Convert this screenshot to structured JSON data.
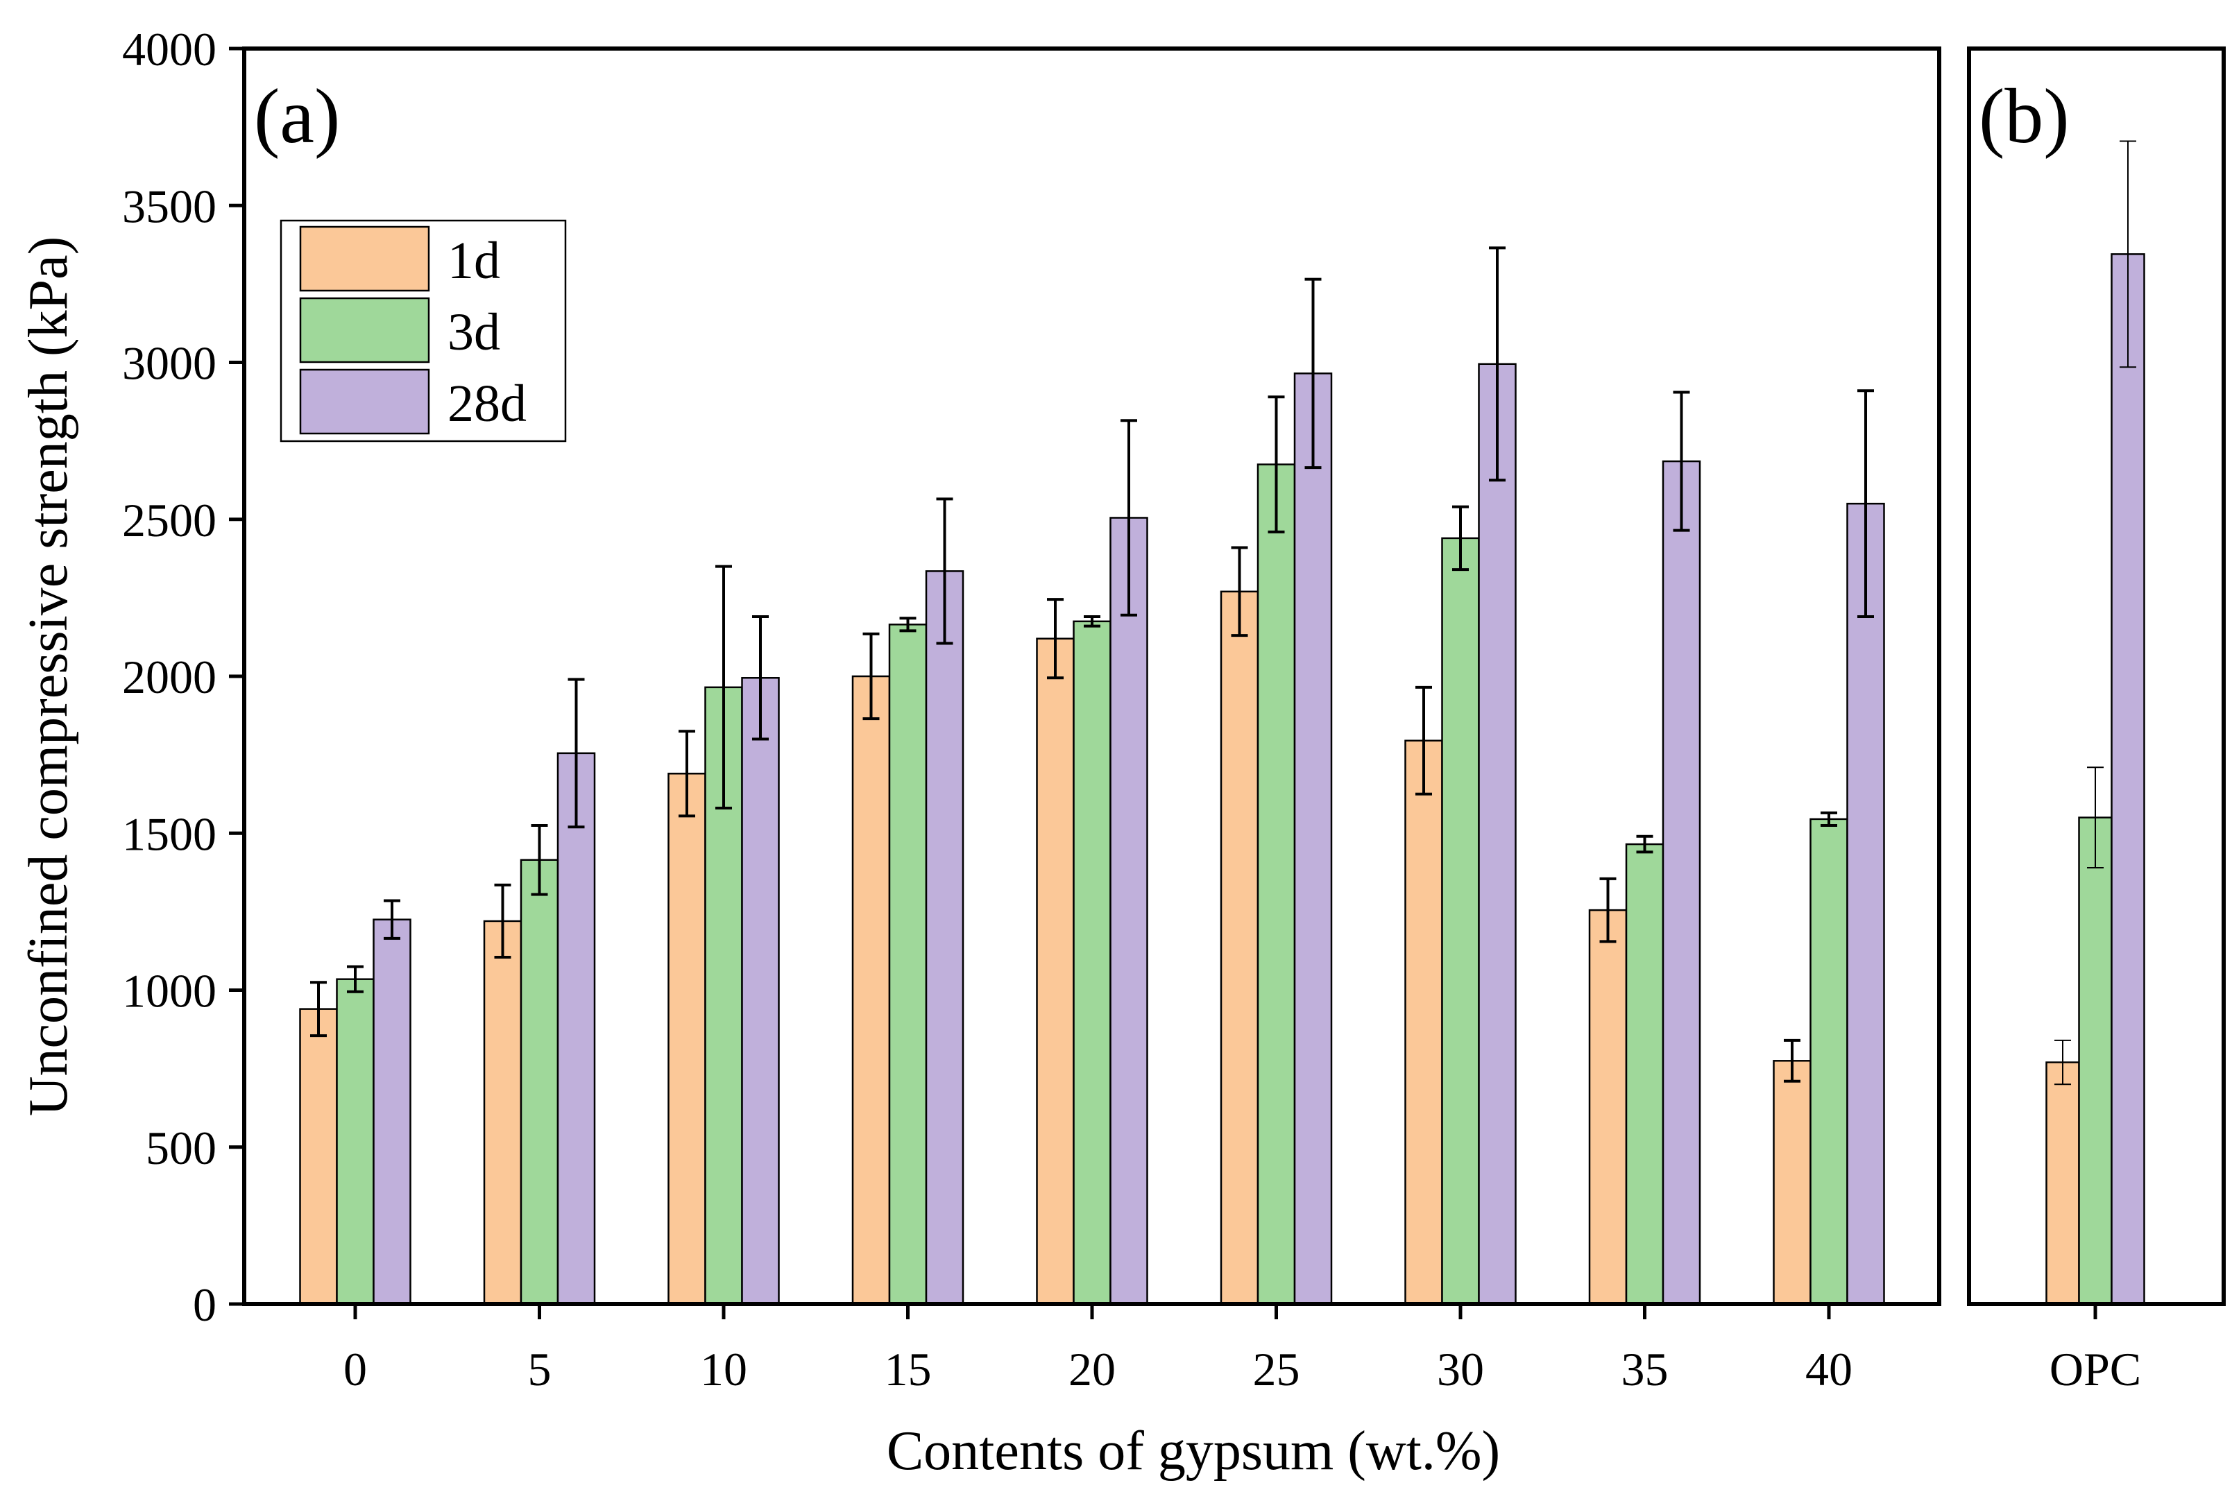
{
  "chart_data": {
    "type": "bar",
    "title": "",
    "ylabel": "Unconfined compressive strength (kPa)",
    "xlabel": "Contents of gypsum (wt.%)",
    "ylim": [
      0,
      4000
    ],
    "yticks": [
      "0",
      "500",
      "1000",
      "1500",
      "2000",
      "2500",
      "3000",
      "3500",
      "4000"
    ],
    "legend_position": "top-left",
    "series_styles": [
      {
        "name": "1d",
        "color": "#fbc898"
      },
      {
        "name": "3d",
        "color": "#9fd89a"
      },
      {
        "name": "28d",
        "color": "#c0b0db"
      }
    ],
    "panels": [
      {
        "label": "(a)",
        "categories": [
          "0",
          "5",
          "10",
          "15",
          "20",
          "25",
          "30",
          "35",
          "40"
        ],
        "series": [
          {
            "name": "1d",
            "values": [
              940,
              1220,
              1690,
              2000,
              2120,
              2270,
              1795,
              1255,
              775
            ],
            "errors": [
              85,
              115,
              135,
              135,
              125,
              140,
              170,
              100,
              65
            ]
          },
          {
            "name": "3d",
            "values": [
              1035,
              1415,
              1965,
              2165,
              2175,
              2675,
              2440,
              1465,
              1545
            ],
            "errors": [
              40,
              110,
              385,
              20,
              15,
              215,
              100,
              25,
              20
            ]
          },
          {
            "name": "28d",
            "values": [
              1225,
              1755,
              1995,
              2335,
              2505,
              2965,
              2995,
              2685,
              2550
            ],
            "errors": [
              60,
              235,
              195,
              230,
              310,
              300,
              370,
              220,
              360
            ]
          }
        ]
      },
      {
        "label": "(b)",
        "categories": [
          "OPC"
        ],
        "series": [
          {
            "name": "1d",
            "values": [
              770
            ],
            "errors": [
              70
            ]
          },
          {
            "name": "3d",
            "values": [
              1550
            ],
            "errors": [
              160
            ]
          },
          {
            "name": "28d",
            "values": [
              3345
            ],
            "errors": [
              360
            ]
          }
        ]
      }
    ]
  }
}
